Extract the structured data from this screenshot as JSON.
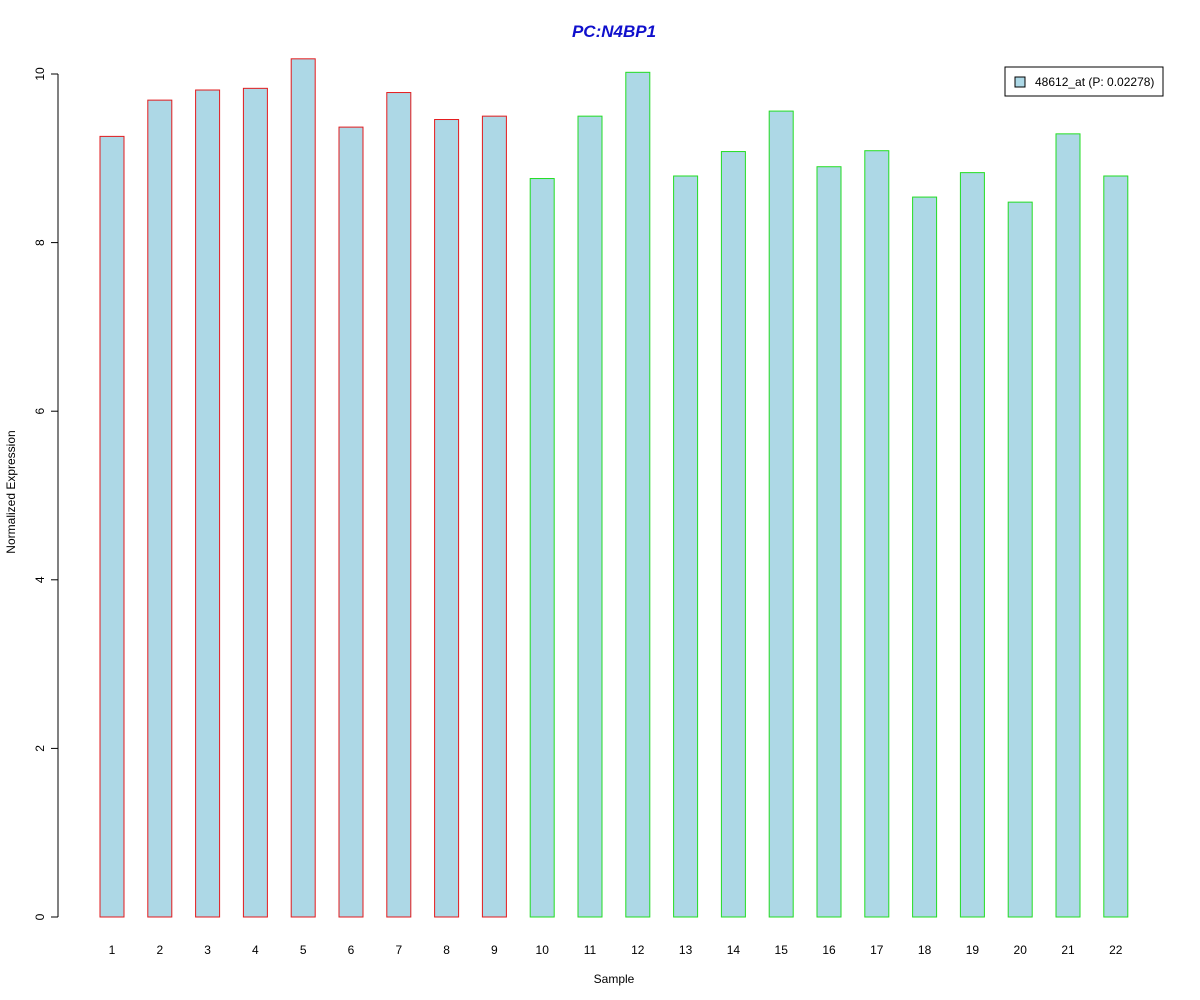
{
  "chart_data": {
    "type": "bar",
    "title": "PC:N4BP1",
    "xlabel": "Sample",
    "ylabel": "Normalized Expression",
    "ylim": [
      0,
      10.2
    ],
    "yticks": [
      0,
      2,
      4,
      6,
      8,
      10
    ],
    "ytick_labels": [
      "0",
      "2",
      "4",
      "6",
      "8",
      "10"
    ],
    "grid": false,
    "legend_position": "top-right",
    "categories": [
      "1",
      "2",
      "3",
      "4",
      "5",
      "6",
      "7",
      "8",
      "9",
      "10",
      "11",
      "12",
      "13",
      "14",
      "15",
      "16",
      "17",
      "18",
      "19",
      "20",
      "21",
      "22"
    ],
    "series": [
      {
        "name": "48612_at (P: 0.02278)",
        "values": [
          9.26,
          9.69,
          9.81,
          9.83,
          10.18,
          9.37,
          9.78,
          9.46,
          9.5,
          8.76,
          9.5,
          10.02,
          8.79,
          9.08,
          9.56,
          8.9,
          9.09,
          8.54,
          8.83,
          8.48,
          9.29,
          8.79
        ],
        "fill_color": "#add8e6",
        "border_colors": [
          "#e31a1c",
          "#e31a1c",
          "#e31a1c",
          "#e31a1c",
          "#e31a1c",
          "#e31a1c",
          "#e31a1c",
          "#e31a1c",
          "#e31a1c",
          "#22dd22",
          "#22dd22",
          "#22dd22",
          "#22dd22",
          "#22dd22",
          "#22dd22",
          "#22dd22",
          "#22dd22",
          "#22dd22",
          "#22dd22",
          "#22dd22",
          "#22dd22",
          "#22dd22"
        ]
      }
    ],
    "colors": {
      "title": "#1010cc",
      "group_a_border": "#e31a1c",
      "group_b_border": "#22dd22",
      "bar_fill": "#add8e6"
    }
  }
}
